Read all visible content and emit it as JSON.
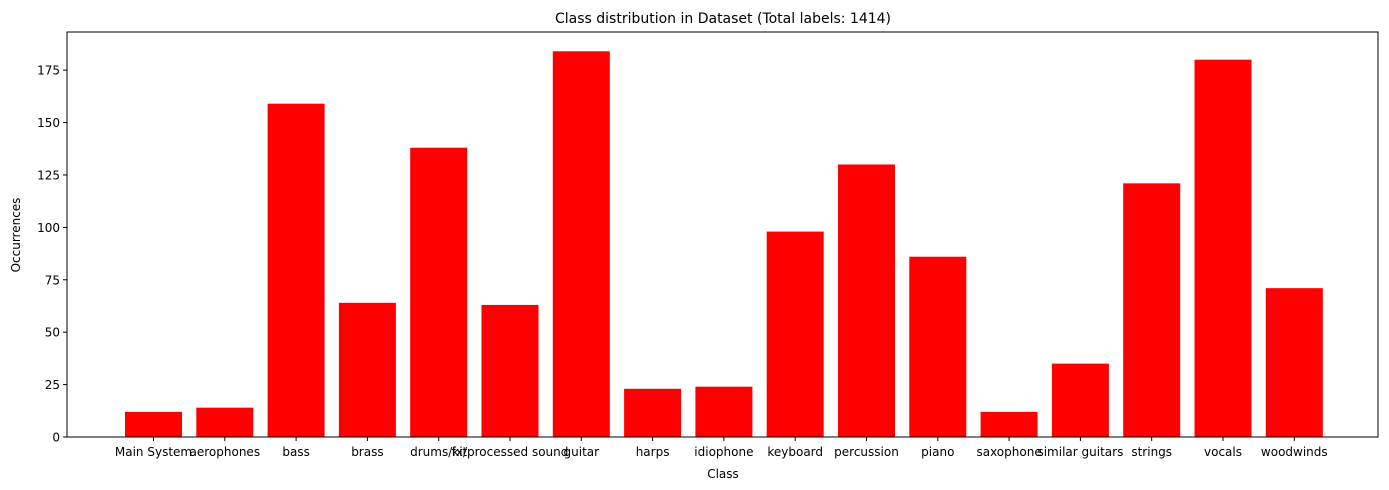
{
  "chart_data": {
    "type": "bar",
    "title": "Class distribution in Dataset (Total labels: 1414)",
    "xlabel": "Class",
    "ylabel": "Occurrences",
    "categories": [
      "Main System",
      "aerophones",
      "bass",
      "brass",
      "drums/kit",
      "fx/processed sound",
      "guitar",
      "harps",
      "idiophone",
      "keyboard",
      "percussion",
      "piano",
      "saxophone",
      "similar guitars",
      "strings",
      "vocals",
      "woodwinds"
    ],
    "values": [
      12,
      14,
      159,
      64,
      138,
      63,
      184,
      23,
      24,
      98,
      130,
      86,
      12,
      35,
      121,
      180,
      71
    ],
    "ylim": [
      0,
      193.2
    ],
    "yticks": [
      0,
      25,
      50,
      75,
      100,
      125,
      150,
      175
    ],
    "grid": false,
    "bar_color": "#ff0000"
  }
}
